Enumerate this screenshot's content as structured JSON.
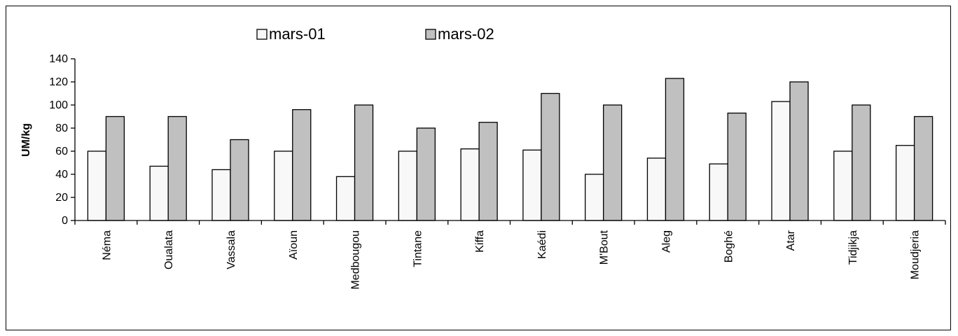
{
  "chart_data": {
    "type": "bar",
    "title": "",
    "xlabel": "",
    "ylabel": "UM/kg",
    "ylim": [
      0,
      140
    ],
    "yticks": [
      0,
      20,
      40,
      60,
      80,
      100,
      120,
      140
    ],
    "grid": false,
    "legend_position": "top",
    "categories": [
      "Néma",
      "Oualata",
      "Vassala",
      "Aïoun",
      "Medbougou",
      "Tintane",
      "Kiffa",
      "Kaédi",
      "M'Bout",
      "Aleg",
      "Boghé",
      "Atar",
      "Tidjikja",
      "Moudjeria"
    ],
    "series": [
      {
        "name": "mars-01",
        "color": "#f8f8f8",
        "values": [
          60,
          47,
          44,
          60,
          38,
          60,
          62,
          61,
          40,
          54,
          49,
          103,
          60,
          65
        ]
      },
      {
        "name": "mars-02",
        "color": "#c0c0c0",
        "values": [
          90,
          90,
          70,
          96,
          100,
          80,
          85,
          110,
          100,
          123,
          93,
          120,
          100,
          90
        ]
      }
    ]
  }
}
